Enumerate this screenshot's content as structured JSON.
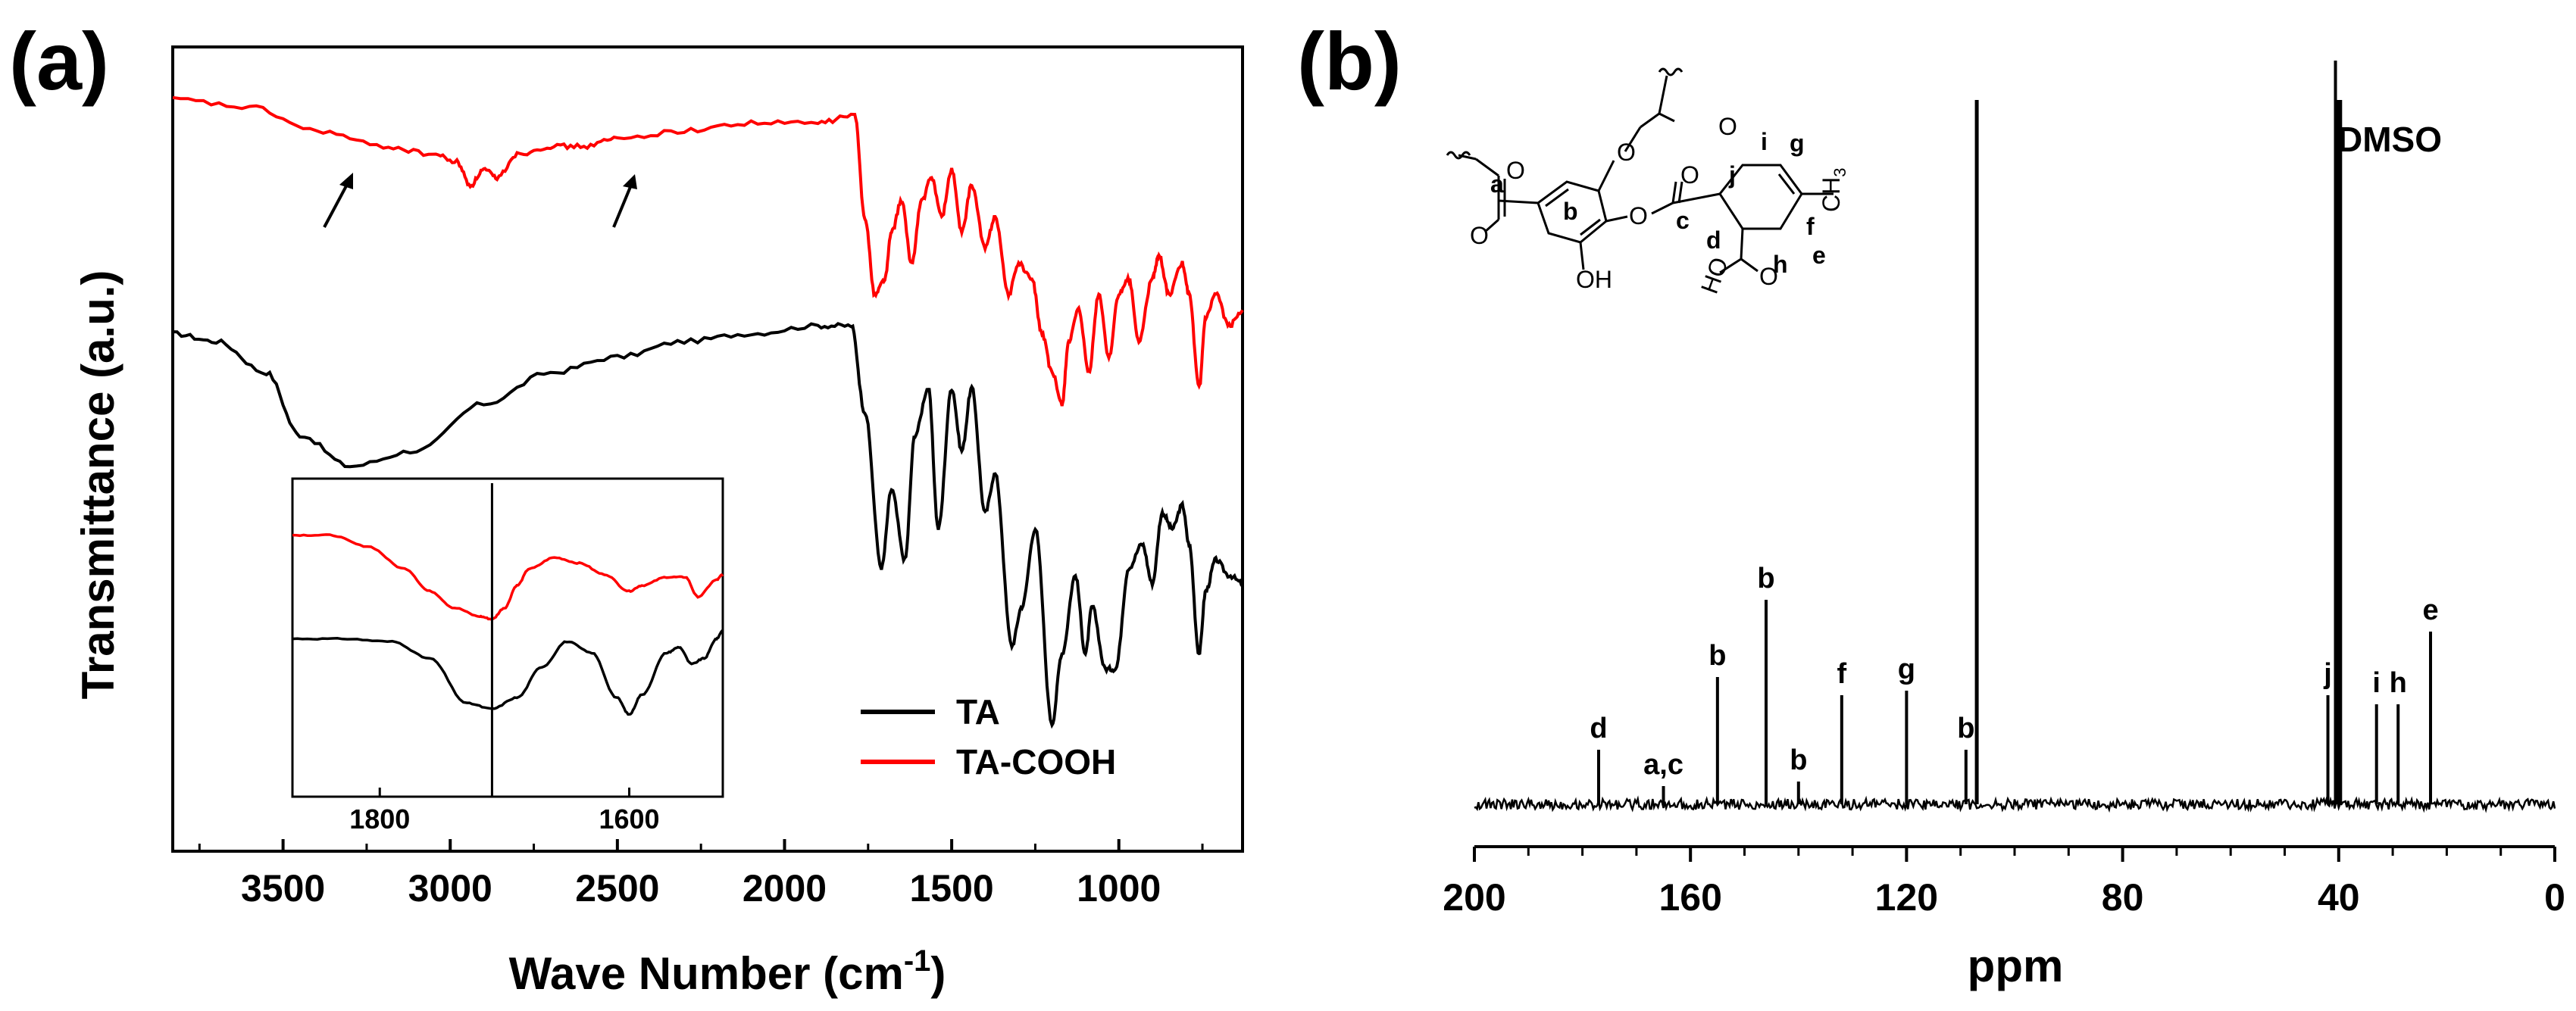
{
  "chart_data": [
    {
      "type": "line",
      "panel_label": "(a)",
      "xlabel": "Wave Number (cm",
      "xlabel_sup": "-1",
      "xlabel_close": ")",
      "ylabel": "Transmittance (a.u.)",
      "xlim": [
        3830,
        630
      ],
      "xticks": [
        "3500",
        "3000",
        "2500",
        "2000",
        "1500",
        "1000"
      ],
      "xtick_values": [
        3500,
        3000,
        2500,
        2000,
        1500,
        1000
      ],
      "series": [
        {
          "name": "TA",
          "color": "#000000",
          "x": [
            3830,
            3700,
            3550,
            3450,
            3300,
            3100,
            2900,
            2700,
            2500,
            2300,
            2100,
            1900,
            1800,
            1760,
            1710,
            1680,
            1640,
            1610,
            1570,
            1540,
            1500,
            1470,
            1440,
            1400,
            1370,
            1320,
            1290,
            1250,
            1200,
            1170,
            1130,
            1100,
            1080,
            1040,
            1010,
            970,
            930,
            900,
            870,
            840,
            810,
            790,
            760,
            740,
            710,
            670,
            630
          ],
          "y": [
            0.65,
            0.64,
            0.6,
            0.52,
            0.48,
            0.5,
            0.56,
            0.6,
            0.62,
            0.64,
            0.65,
            0.66,
            0.66,
            0.55,
            0.35,
            0.45,
            0.36,
            0.52,
            0.58,
            0.4,
            0.58,
            0.5,
            0.58,
            0.42,
            0.47,
            0.25,
            0.3,
            0.4,
            0.15,
            0.24,
            0.34,
            0.24,
            0.3,
            0.22,
            0.22,
            0.35,
            0.38,
            0.33,
            0.42,
            0.4,
            0.43,
            0.38,
            0.24,
            0.32,
            0.36,
            0.34,
            0.33
          ]
        },
        {
          "name": "TA-COOH",
          "color": "#ff0000",
          "x": [
            3830,
            3600,
            3400,
            3200,
            3050,
            2980,
            2940,
            2900,
            2860,
            2800,
            2700,
            2600,
            2500,
            2300,
            2100,
            1900,
            1790,
            1760,
            1730,
            1700,
            1680,
            1650,
            1620,
            1590,
            1560,
            1530,
            1500,
            1470,
            1440,
            1400,
            1370,
            1330,
            1300,
            1260,
            1230,
            1200,
            1170,
            1150,
            1120,
            1090,
            1060,
            1030,
            1000,
            970,
            940,
            900,
            880,
            850,
            810,
            790,
            760,
            740,
            710,
            670,
            630
          ],
          "y": [
            0.95,
            0.94,
            0.91,
            0.89,
            0.88,
            0.87,
            0.84,
            0.86,
            0.85,
            0.88,
            0.89,
            0.89,
            0.9,
            0.91,
            0.92,
            0.92,
            0.93,
            0.8,
            0.7,
            0.72,
            0.78,
            0.82,
            0.74,
            0.82,
            0.85,
            0.8,
            0.86,
            0.78,
            0.84,
            0.76,
            0.8,
            0.7,
            0.74,
            0.72,
            0.65,
            0.6,
            0.56,
            0.64,
            0.68,
            0.6,
            0.7,
            0.62,
            0.7,
            0.72,
            0.64,
            0.72,
            0.75,
            0.7,
            0.74,
            0.7,
            0.58,
            0.67,
            0.7,
            0.66,
            0.68
          ]
        }
      ],
      "legend": [
        {
          "name": "TA",
          "color": "#000000"
        },
        {
          "name": "TA-COOH",
          "color": "#ff0000"
        }
      ],
      "legend_position": "bottom-right",
      "annotations": "two arrows near 3300 and 2400 cm-1 on TA-COOH curve",
      "inset": {
        "xlim": [
          1870,
          1525
        ],
        "xticks": [
          "1800",
          "1600"
        ],
        "xtick_values": [
          1800,
          1600
        ],
        "vline_x": 1710,
        "series": [
          {
            "name": "TA",
            "color": "#000000",
            "x": [
              1870,
              1830,
              1790,
              1760,
              1730,
              1710,
              1690,
              1670,
              1650,
              1630,
              1610,
              1600,
              1590,
              1570,
              1560,
              1550,
              1540,
              1530,
              1525
            ],
            "y": [
              0.45,
              0.45,
              0.44,
              0.38,
              0.22,
              0.2,
              0.24,
              0.35,
              0.44,
              0.4,
              0.24,
              0.18,
              0.25,
              0.4,
              0.42,
              0.36,
              0.38,
              0.45,
              0.48
            ]
          },
          {
            "name": "TA-COOH",
            "color": "#ff0000",
            "x": [
              1870,
              1840,
              1810,
              1780,
              1760,
              1740,
              1720,
              1710,
              1700,
              1690,
              1680,
              1660,
              1640,
              1620,
              1600,
              1590,
              1570,
              1555,
              1545,
              1530,
              1525
            ],
            "y": [
              0.82,
              0.82,
              0.78,
              0.7,
              0.62,
              0.56,
              0.53,
              0.52,
              0.56,
              0.64,
              0.7,
              0.74,
              0.72,
              0.68,
              0.62,
              0.64,
              0.67,
              0.67,
              0.6,
              0.66,
              0.68
            ]
          }
        ]
      }
    },
    {
      "type": "line",
      "panel_label": "(b)",
      "xlabel": "ppm",
      "xlim": [
        200,
        0
      ],
      "xticks": [
        "200",
        "160",
        "120",
        "80",
        "40",
        "0"
      ],
      "xtick_values": [
        200,
        160,
        120,
        80,
        40,
        0
      ],
      "solvent_label": "DMSO",
      "peaks": [
        {
          "label": "d",
          "ppm": 177,
          "height": 0.12
        },
        {
          "label": "a,c",
          "ppm": 165,
          "height": 0.04
        },
        {
          "label": "b",
          "ppm": 155,
          "height": 0.28
        },
        {
          "label": "b",
          "ppm": 146,
          "height": 0.45
        },
        {
          "label": "b",
          "ppm": 140,
          "height": 0.05
        },
        {
          "label": "f",
          "ppm": 132,
          "height": 0.24
        },
        {
          "label": "g",
          "ppm": 120,
          "height": 0.25
        },
        {
          "label": "b",
          "ppm": 109,
          "height": 0.12
        },
        {
          "label": "",
          "ppm": 107,
          "height": 1.55
        },
        {
          "label": "DMSO",
          "ppm": 40,
          "height": 1.55
        },
        {
          "label": "j",
          "ppm": 42,
          "height": 0.24
        },
        {
          "label": "i",
          "ppm": 33,
          "height": 0.22
        },
        {
          "label": "h",
          "ppm": 29,
          "height": 0.22
        },
        {
          "label": "e",
          "ppm": 23,
          "height": 0.38
        }
      ],
      "structure_labels": [
        "a",
        "b",
        "c",
        "d",
        "e",
        "f",
        "g",
        "h",
        "i",
        "j",
        "OH",
        "HO",
        "CH"
      ]
    }
  ]
}
